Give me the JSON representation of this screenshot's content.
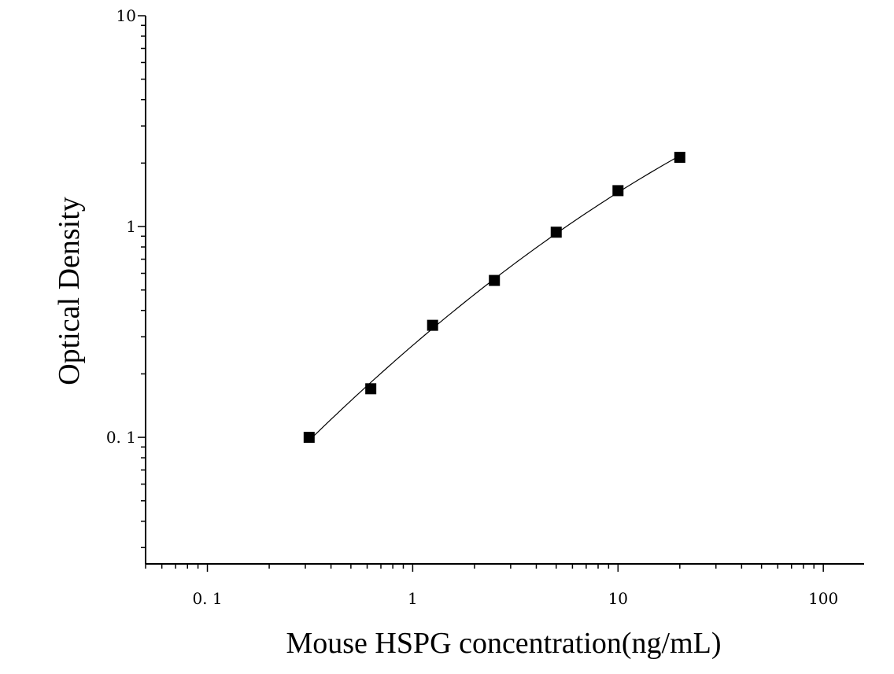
{
  "chart_data": {
    "type": "scatter",
    "title": "",
    "xlabel": "Mouse HSPG concentration(ng/mL)",
    "ylabel": "Optical Density",
    "x_scale": "log",
    "y_scale": "log",
    "xlim": [
      0.05,
      158
    ],
    "ylim": [
      0.0251,
      10
    ],
    "x_ticks": [
      {
        "value": 0.1,
        "label": "0. 1"
      },
      {
        "value": 1,
        "label": "1"
      },
      {
        "value": 10,
        "label": "10"
      },
      {
        "value": 100,
        "label": "100"
      }
    ],
    "y_ticks": [
      {
        "value": 0.1,
        "label": "0. 1"
      },
      {
        "value": 1,
        "label": "1"
      },
      {
        "value": 10,
        "label": "10"
      }
    ],
    "grid": false,
    "legend": "none",
    "series": [
      {
        "x": [
          0.313,
          0.625,
          1.25,
          2.5,
          5,
          10,
          20
        ],
        "y": [
          0.1,
          0.17,
          0.34,
          0.555,
          0.94,
          1.48,
          2.13
        ],
        "marker": "square",
        "color": "#000000",
        "fit_curve": true
      }
    ]
  }
}
